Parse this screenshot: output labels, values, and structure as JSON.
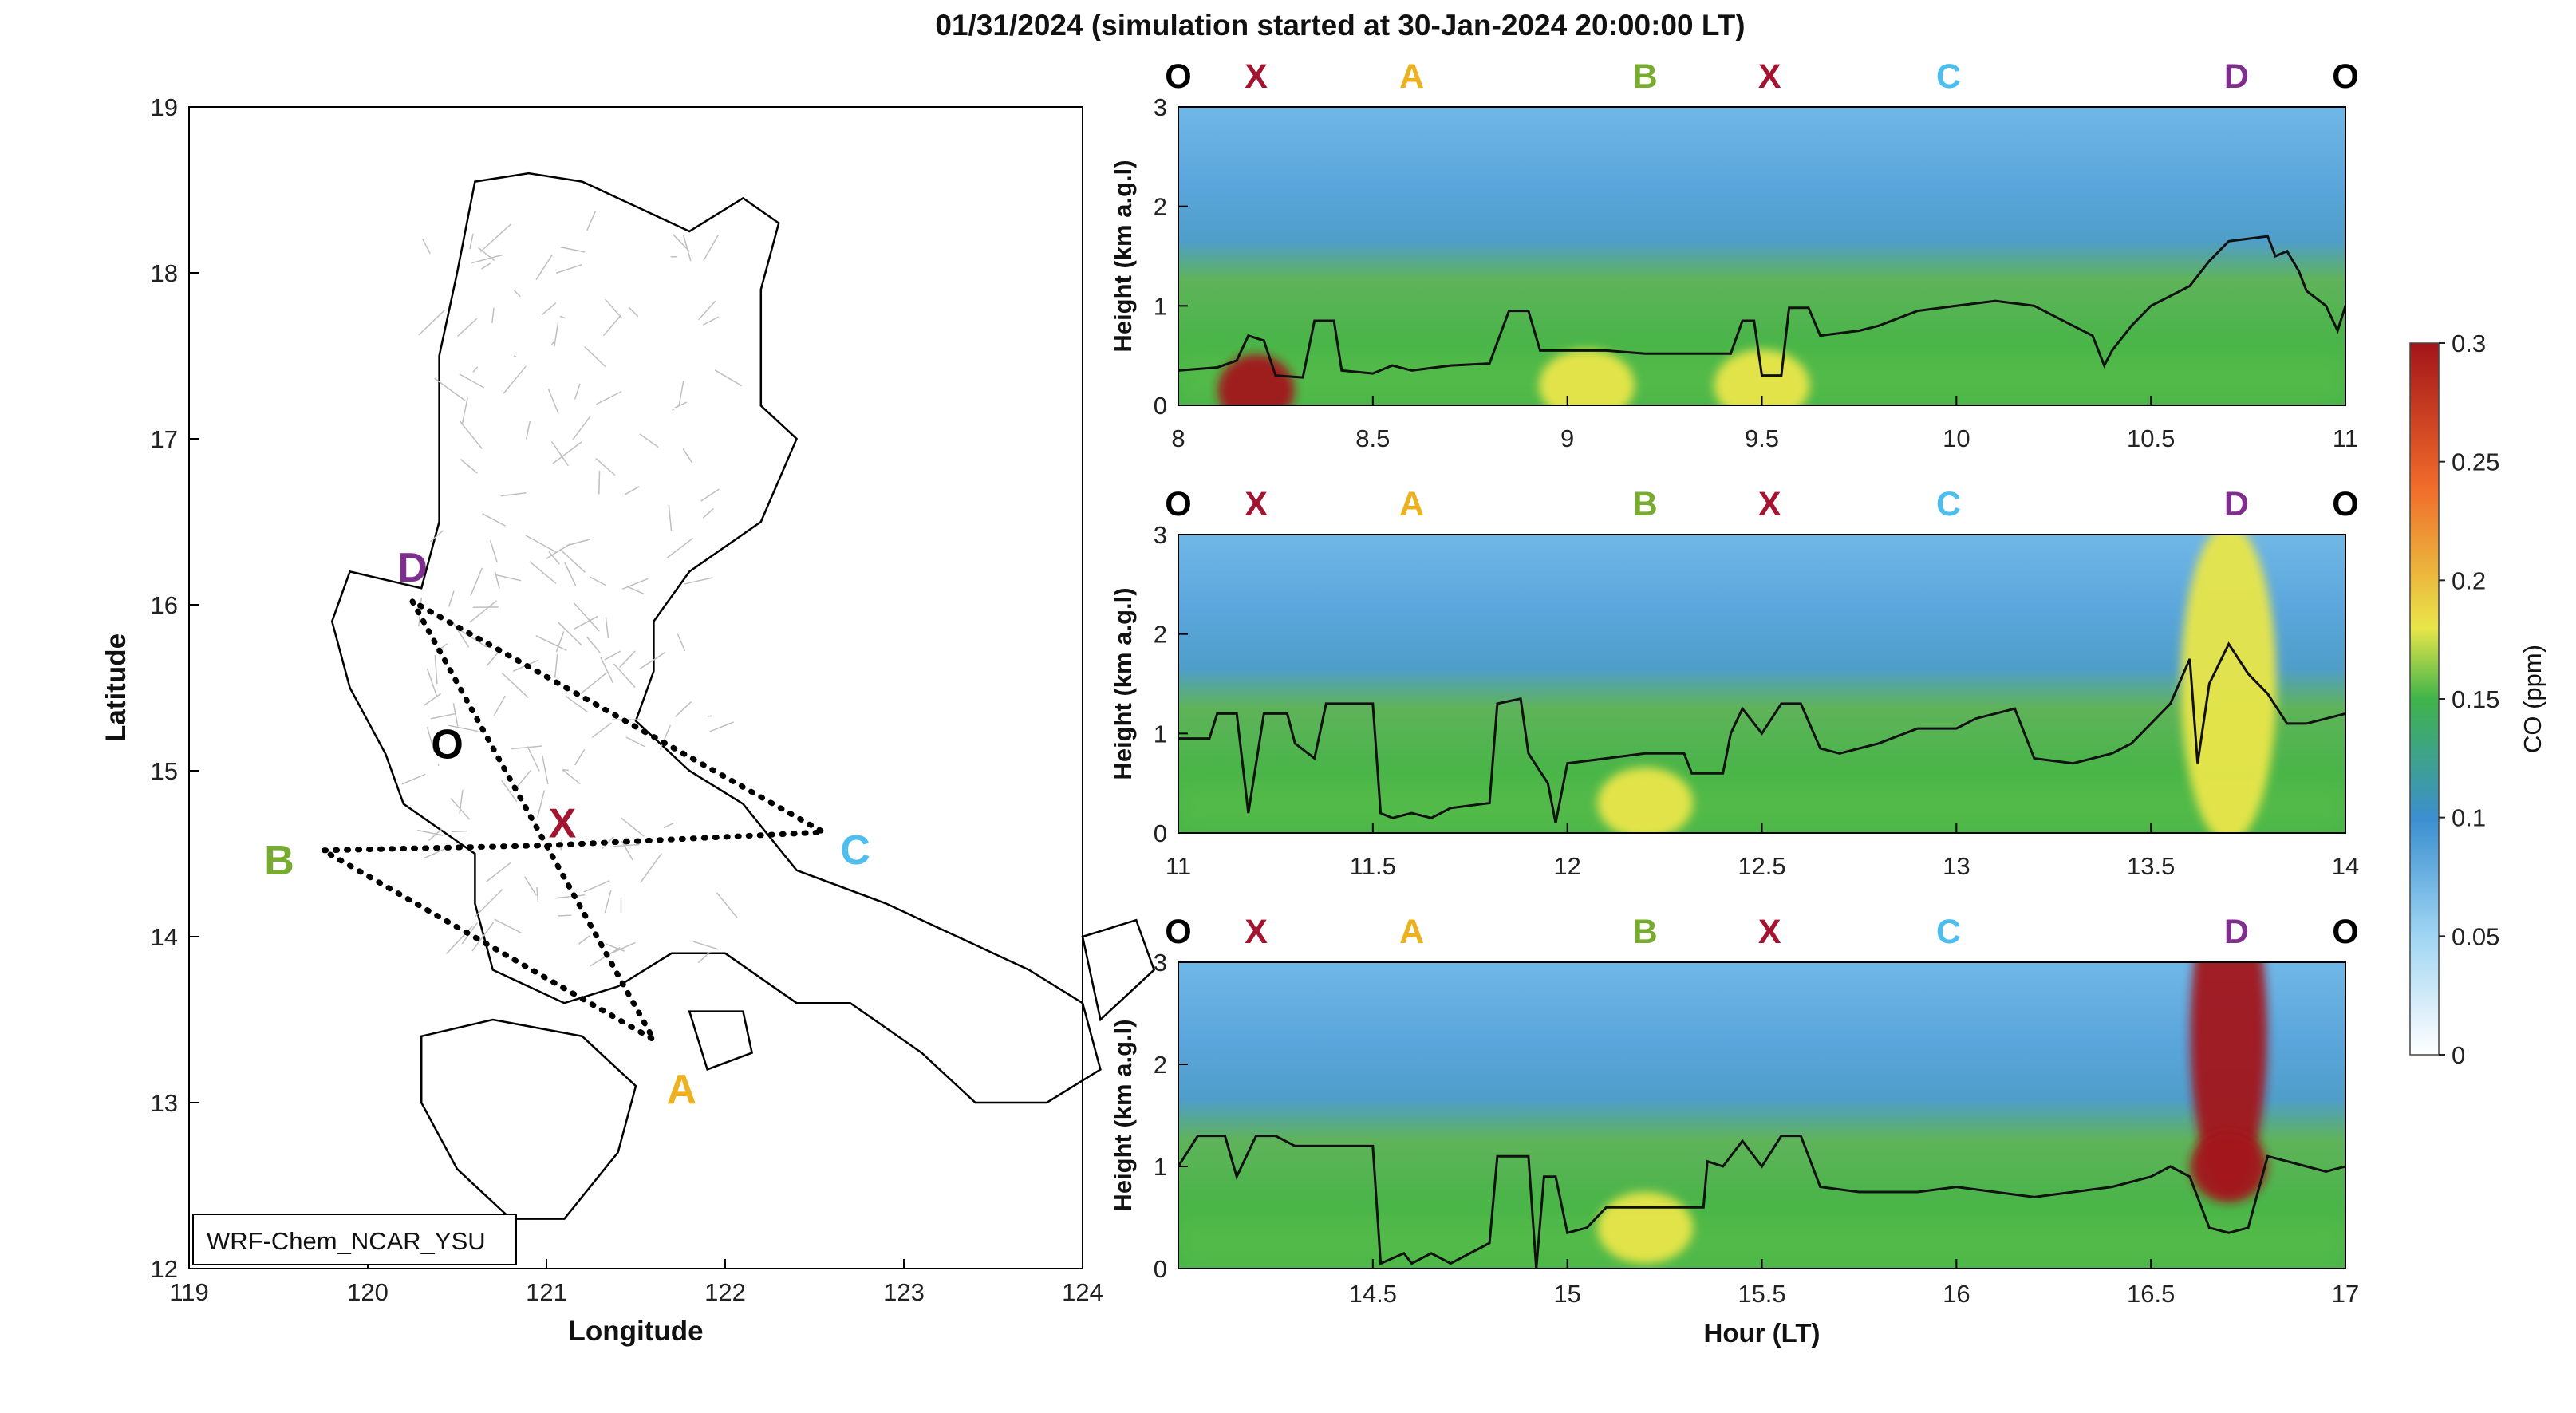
{
  "title": "01/31/2024 (simulation started at 30-Jan-2024 20:00:00 LT)",
  "colors": {
    "O": "#000000",
    "X": "#a2142f",
    "A": "#edb120",
    "B": "#77ac30",
    "C": "#4dbeee",
    "D": "#7e2f8e"
  },
  "chart_data": [
    {
      "type": "map",
      "xlabel": "Longitude",
      "ylabel": "Latitude",
      "xlim": [
        119,
        124
      ],
      "ylim": [
        12,
        19
      ],
      "xticks": [
        "119",
        "120",
        "121",
        "122",
        "123",
        "124"
      ],
      "yticks": [
        "12",
        "13",
        "14",
        "15",
        "16",
        "17",
        "18",
        "19"
      ],
      "annotation": "WRF-Chem_NCAR_YSU",
      "points": [
        {
          "label": "O",
          "lon": 120.4,
          "lat": 15.17
        },
        {
          "label": "X",
          "lon": 121.0,
          "lat": 14.55
        },
        {
          "label": "A",
          "lon": 121.6,
          "lat": 13.38
        },
        {
          "label": "B",
          "lon": 119.75,
          "lat": 14.52
        },
        {
          "label": "C",
          "lon": 122.55,
          "lat": 14.63
        },
        {
          "label": "D",
          "lon": 120.25,
          "lat": 16.02
        }
      ],
      "route": [
        "D",
        "X",
        "A",
        "B",
        "X",
        "C",
        "D"
      ]
    },
    {
      "type": "heatmap",
      "ylabel": "Height (km a.g.l)",
      "xlim": [
        8,
        11
      ],
      "ylim": [
        0,
        3
      ],
      "xticks": [
        "8",
        "8.5",
        "9",
        "9.5",
        "10",
        "10.5",
        "11"
      ],
      "yticks": [
        "0",
        "1",
        "2",
        "3"
      ],
      "markers": [
        {
          "label": "O",
          "x": 8.0
        },
        {
          "label": "X",
          "x": 8.2
        },
        {
          "label": "A",
          "x": 8.6
        },
        {
          "label": "B",
          "x": 9.2
        },
        {
          "label": "X",
          "x": 9.52
        },
        {
          "label": "C",
          "x": 9.98
        },
        {
          "label": "D",
          "x": 10.72
        },
        {
          "label": "O",
          "x": 11.0
        }
      ],
      "pblh_line": [
        [
          8.0,
          0.35
        ],
        [
          8.1,
          0.38
        ],
        [
          8.15,
          0.45
        ],
        [
          8.18,
          0.7
        ],
        [
          8.22,
          0.65
        ],
        [
          8.25,
          0.3
        ],
        [
          8.32,
          0.28
        ],
        [
          8.35,
          0.85
        ],
        [
          8.4,
          0.85
        ],
        [
          8.42,
          0.35
        ],
        [
          8.5,
          0.32
        ],
        [
          8.55,
          0.4
        ],
        [
          8.6,
          0.35
        ],
        [
          8.7,
          0.4
        ],
        [
          8.8,
          0.42
        ],
        [
          8.85,
          0.95
        ],
        [
          8.9,
          0.95
        ],
        [
          8.93,
          0.55
        ],
        [
          9.0,
          0.55
        ],
        [
          9.1,
          0.55
        ],
        [
          9.2,
          0.52
        ],
        [
          9.3,
          0.52
        ],
        [
          9.42,
          0.52
        ],
        [
          9.45,
          0.85
        ],
        [
          9.48,
          0.85
        ],
        [
          9.5,
          0.3
        ],
        [
          9.55,
          0.3
        ],
        [
          9.57,
          0.98
        ],
        [
          9.62,
          0.98
        ],
        [
          9.65,
          0.7
        ],
        [
          9.75,
          0.75
        ],
        [
          9.8,
          0.8
        ],
        [
          9.9,
          0.95
        ],
        [
          10.0,
          1.0
        ],
        [
          10.1,
          1.05
        ],
        [
          10.2,
          1.0
        ],
        [
          10.3,
          0.8
        ],
        [
          10.35,
          0.7
        ],
        [
          10.38,
          0.4
        ],
        [
          10.4,
          0.55
        ],
        [
          10.45,
          0.8
        ],
        [
          10.5,
          1.0
        ],
        [
          10.55,
          1.1
        ],
        [
          10.6,
          1.2
        ],
        [
          10.65,
          1.45
        ],
        [
          10.7,
          1.65
        ],
        [
          10.8,
          1.7
        ],
        [
          10.82,
          1.5
        ],
        [
          10.85,
          1.55
        ],
        [
          10.88,
          1.35
        ],
        [
          10.9,
          1.15
        ],
        [
          10.95,
          1.0
        ],
        [
          10.98,
          0.75
        ],
        [
          11.0,
          1.0
        ]
      ],
      "hotspots": [
        {
          "x": 8.2,
          "y": 0.15,
          "value": 0.27
        },
        {
          "x": 9.05,
          "y": 0.2,
          "value": 0.17
        },
        {
          "x": 9.5,
          "y": 0.2,
          "value": 0.18
        }
      ]
    },
    {
      "type": "heatmap",
      "ylabel": "Height (km a.g.l)",
      "xlim": [
        11,
        14
      ],
      "ylim": [
        0,
        3
      ],
      "xticks": [
        "11",
        "11.5",
        "12",
        "12.5",
        "13",
        "13.5",
        "14"
      ],
      "yticks": [
        "0",
        "1",
        "2",
        "3"
      ],
      "markers": [
        {
          "label": "O",
          "x": 11.0
        },
        {
          "label": "X",
          "x": 11.2
        },
        {
          "label": "A",
          "x": 11.6
        },
        {
          "label": "B",
          "x": 12.2
        },
        {
          "label": "X",
          "x": 12.52
        },
        {
          "label": "C",
          "x": 12.98
        },
        {
          "label": "D",
          "x": 13.72
        },
        {
          "label": "O",
          "x": 14.0
        }
      ],
      "pblh_line": [
        [
          11.0,
          0.95
        ],
        [
          11.08,
          0.95
        ],
        [
          11.1,
          1.2
        ],
        [
          11.15,
          1.2
        ],
        [
          11.18,
          0.2
        ],
        [
          11.22,
          1.2
        ],
        [
          11.28,
          1.2
        ],
        [
          11.3,
          0.9
        ],
        [
          11.35,
          0.75
        ],
        [
          11.38,
          1.3
        ],
        [
          11.45,
          1.3
        ],
        [
          11.5,
          1.3
        ],
        [
          11.52,
          0.2
        ],
        [
          11.55,
          0.15
        ],
        [
          11.6,
          0.2
        ],
        [
          11.65,
          0.15
        ],
        [
          11.7,
          0.25
        ],
        [
          11.8,
          0.3
        ],
        [
          11.82,
          1.3
        ],
        [
          11.88,
          1.35
        ],
        [
          11.9,
          0.8
        ],
        [
          11.95,
          0.5
        ],
        [
          11.97,
          0.1
        ],
        [
          12.0,
          0.7
        ],
        [
          12.1,
          0.75
        ],
        [
          12.2,
          0.8
        ],
        [
          12.3,
          0.8
        ],
        [
          12.32,
          0.6
        ],
        [
          12.4,
          0.6
        ],
        [
          12.42,
          1.0
        ],
        [
          12.45,
          1.25
        ],
        [
          12.5,
          1.0
        ],
        [
          12.55,
          1.3
        ],
        [
          12.6,
          1.3
        ],
        [
          12.65,
          0.85
        ],
        [
          12.7,
          0.8
        ],
        [
          12.8,
          0.9
        ],
        [
          12.9,
          1.05
        ],
        [
          13.0,
          1.05
        ],
        [
          13.05,
          1.15
        ],
        [
          13.1,
          1.2
        ],
        [
          13.15,
          1.25
        ],
        [
          13.2,
          0.75
        ],
        [
          13.3,
          0.7
        ],
        [
          13.4,
          0.8
        ],
        [
          13.45,
          0.9
        ],
        [
          13.5,
          1.1
        ],
        [
          13.55,
          1.3
        ],
        [
          13.6,
          1.75
        ],
        [
          13.62,
          0.7
        ],
        [
          13.65,
          1.5
        ],
        [
          13.7,
          1.9
        ],
        [
          13.75,
          1.6
        ],
        [
          13.8,
          1.4
        ],
        [
          13.85,
          1.1
        ],
        [
          13.9,
          1.1
        ],
        [
          14.0,
          1.2
        ]
      ],
      "hotspots": [
        {
          "x": 13.7,
          "y": 1.5,
          "value": 0.18
        },
        {
          "x": 12.2,
          "y": 0.3,
          "value": 0.16
        }
      ]
    },
    {
      "type": "heatmap",
      "ylabel": "Height (km a.g.l)",
      "xlabel": "Hour (LT)",
      "xlim": [
        14,
        17
      ],
      "ylim": [
        0,
        3
      ],
      "xticks": [
        "14.5",
        "15",
        "15.5",
        "16",
        "16.5",
        "17"
      ],
      "yticks": [
        "0",
        "1",
        "2",
        "3"
      ],
      "markers": [
        {
          "label": "O",
          "x": 14.0
        },
        {
          "label": "X",
          "x": 14.2
        },
        {
          "label": "A",
          "x": 14.6
        },
        {
          "label": "B",
          "x": 15.2
        },
        {
          "label": "X",
          "x": 15.52
        },
        {
          "label": "C",
          "x": 15.98
        },
        {
          "label": "D",
          "x": 16.72
        },
        {
          "label": "O",
          "x": 17.0
        }
      ],
      "pblh_line": [
        [
          14.0,
          1.0
        ],
        [
          14.05,
          1.3
        ],
        [
          14.12,
          1.3
        ],
        [
          14.15,
          0.9
        ],
        [
          14.2,
          1.3
        ],
        [
          14.25,
          1.3
        ],
        [
          14.3,
          1.2
        ],
        [
          14.4,
          1.2
        ],
        [
          14.5,
          1.2
        ],
        [
          14.52,
          0.05
        ],
        [
          14.58,
          0.15
        ],
        [
          14.6,
          0.05
        ],
        [
          14.65,
          0.15
        ],
        [
          14.7,
          0.05
        ],
        [
          14.8,
          0.25
        ],
        [
          14.82,
          1.1
        ],
        [
          14.9,
          1.1
        ],
        [
          14.92,
          0.0
        ],
        [
          14.94,
          0.9
        ],
        [
          14.97,
          0.9
        ],
        [
          15.0,
          0.35
        ],
        [
          15.05,
          0.4
        ],
        [
          15.1,
          0.6
        ],
        [
          15.2,
          0.6
        ],
        [
          15.3,
          0.6
        ],
        [
          15.35,
          0.6
        ],
        [
          15.36,
          1.05
        ],
        [
          15.4,
          1.0
        ],
        [
          15.45,
          1.25
        ],
        [
          15.5,
          1.0
        ],
        [
          15.55,
          1.3
        ],
        [
          15.6,
          1.3
        ],
        [
          15.65,
          0.8
        ],
        [
          15.75,
          0.75
        ],
        [
          15.9,
          0.75
        ],
        [
          16.0,
          0.8
        ],
        [
          16.1,
          0.75
        ],
        [
          16.2,
          0.7
        ],
        [
          16.3,
          0.75
        ],
        [
          16.4,
          0.8
        ],
        [
          16.5,
          0.9
        ],
        [
          16.55,
          1.0
        ],
        [
          16.6,
          0.9
        ],
        [
          16.65,
          0.4
        ],
        [
          16.7,
          0.35
        ],
        [
          16.75,
          0.4
        ],
        [
          16.8,
          1.1
        ],
        [
          16.85,
          1.05
        ],
        [
          16.9,
          1.0
        ],
        [
          16.95,
          0.95
        ],
        [
          17.0,
          1.0
        ]
      ],
      "hotspots": [
        {
          "x": 16.7,
          "y": 2.3,
          "value": 0.28
        },
        {
          "x": 16.7,
          "y": 1.0,
          "value": 0.27
        },
        {
          "x": 15.2,
          "y": 0.4,
          "value": 0.16
        }
      ]
    },
    {
      "type": "colorbar",
      "label": "CO (ppm)",
      "range": [
        0,
        0.3
      ],
      "ticks": [
        "0",
        "0.05",
        "0.1",
        "0.15",
        "0.2",
        "0.25",
        "0.3"
      ]
    }
  ]
}
